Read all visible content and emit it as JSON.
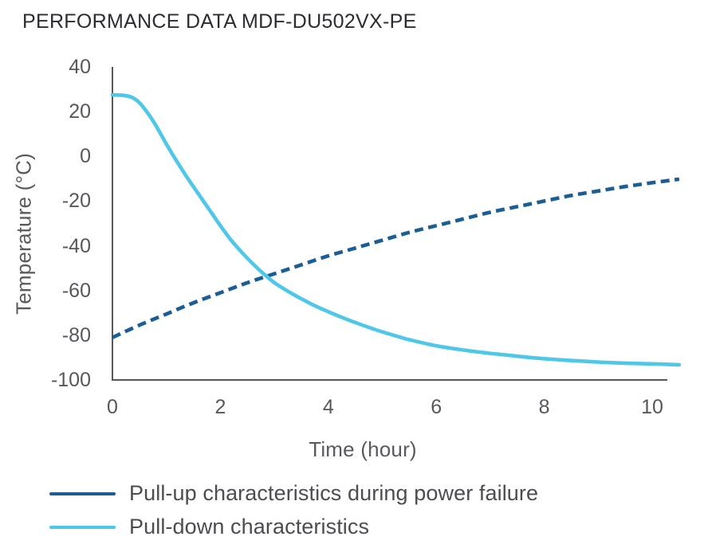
{
  "chart_data": {
    "type": "line",
    "title": "PERFORMANCE DATA MDF-DU502VX-PE",
    "xlabel": "Time (hour)",
    "ylabel": "Temperature (°C)",
    "xlim": [
      0,
      10.5
    ],
    "ylim": [
      -100,
      40
    ],
    "x_ticks": [
      0,
      2,
      4,
      6,
      8,
      10
    ],
    "y_ticks": [
      40,
      20,
      0,
      -20,
      -40,
      -60,
      -80,
      -100
    ],
    "grid": false,
    "legend_position": "bottom-left",
    "axis_color": "#57585a",
    "series": [
      {
        "name": "Pull-up characteristics during power failure",
        "color": "#1b5e96",
        "style": "dashed",
        "points": [
          [
            0,
            -81
          ],
          [
            0.5,
            -75.5
          ],
          [
            1,
            -70.5
          ],
          [
            1.5,
            -65.5
          ],
          [
            2,
            -61
          ],
          [
            2.5,
            -56.5
          ],
          [
            3,
            -52.5
          ],
          [
            3.5,
            -48.5
          ],
          [
            4,
            -44.5
          ],
          [
            4.5,
            -41
          ],
          [
            5,
            -37.5
          ],
          [
            5.5,
            -34
          ],
          [
            6,
            -31
          ],
          [
            6.5,
            -28
          ],
          [
            7,
            -25
          ],
          [
            7.5,
            -22.5
          ],
          [
            8,
            -20
          ],
          [
            8.5,
            -17.5
          ],
          [
            9,
            -15.5
          ],
          [
            9.5,
            -13.5
          ],
          [
            10,
            -11.8
          ],
          [
            10.5,
            -10.2
          ]
        ]
      },
      {
        "name": "Pull-down characteristics",
        "color": "#4ec7e8",
        "style": "solid",
        "points": [
          [
            0,
            27.5
          ],
          [
            0.2,
            27.3
          ],
          [
            0.35,
            26.5
          ],
          [
            0.5,
            24
          ],
          [
            0.65,
            19.5
          ],
          [
            0.8,
            14
          ],
          [
            1,
            5.5
          ],
          [
            1.2,
            -2.5
          ],
          [
            1.4,
            -10
          ],
          [
            1.6,
            -17
          ],
          [
            1.8,
            -24
          ],
          [
            2,
            -31
          ],
          [
            2.2,
            -37.5
          ],
          [
            2.4,
            -43
          ],
          [
            2.6,
            -48
          ],
          [
            2.8,
            -52.5
          ],
          [
            3,
            -56.5
          ],
          [
            3.25,
            -60.3
          ],
          [
            3.5,
            -63.7
          ],
          [
            3.75,
            -66.8
          ],
          [
            4,
            -69.5
          ],
          [
            4.25,
            -72
          ],
          [
            4.5,
            -74.3
          ],
          [
            4.75,
            -76.5
          ],
          [
            5,
            -78.5
          ],
          [
            5.25,
            -80.3
          ],
          [
            5.5,
            -82
          ],
          [
            6,
            -84.7
          ],
          [
            6.5,
            -86.6
          ],
          [
            7,
            -88.1
          ],
          [
            7.5,
            -89.4
          ],
          [
            8,
            -90.5
          ],
          [
            8.5,
            -91.3
          ],
          [
            9,
            -92
          ],
          [
            9.5,
            -92.5
          ],
          [
            10,
            -92.8
          ],
          [
            10.5,
            -93.2
          ]
        ]
      }
    ]
  }
}
